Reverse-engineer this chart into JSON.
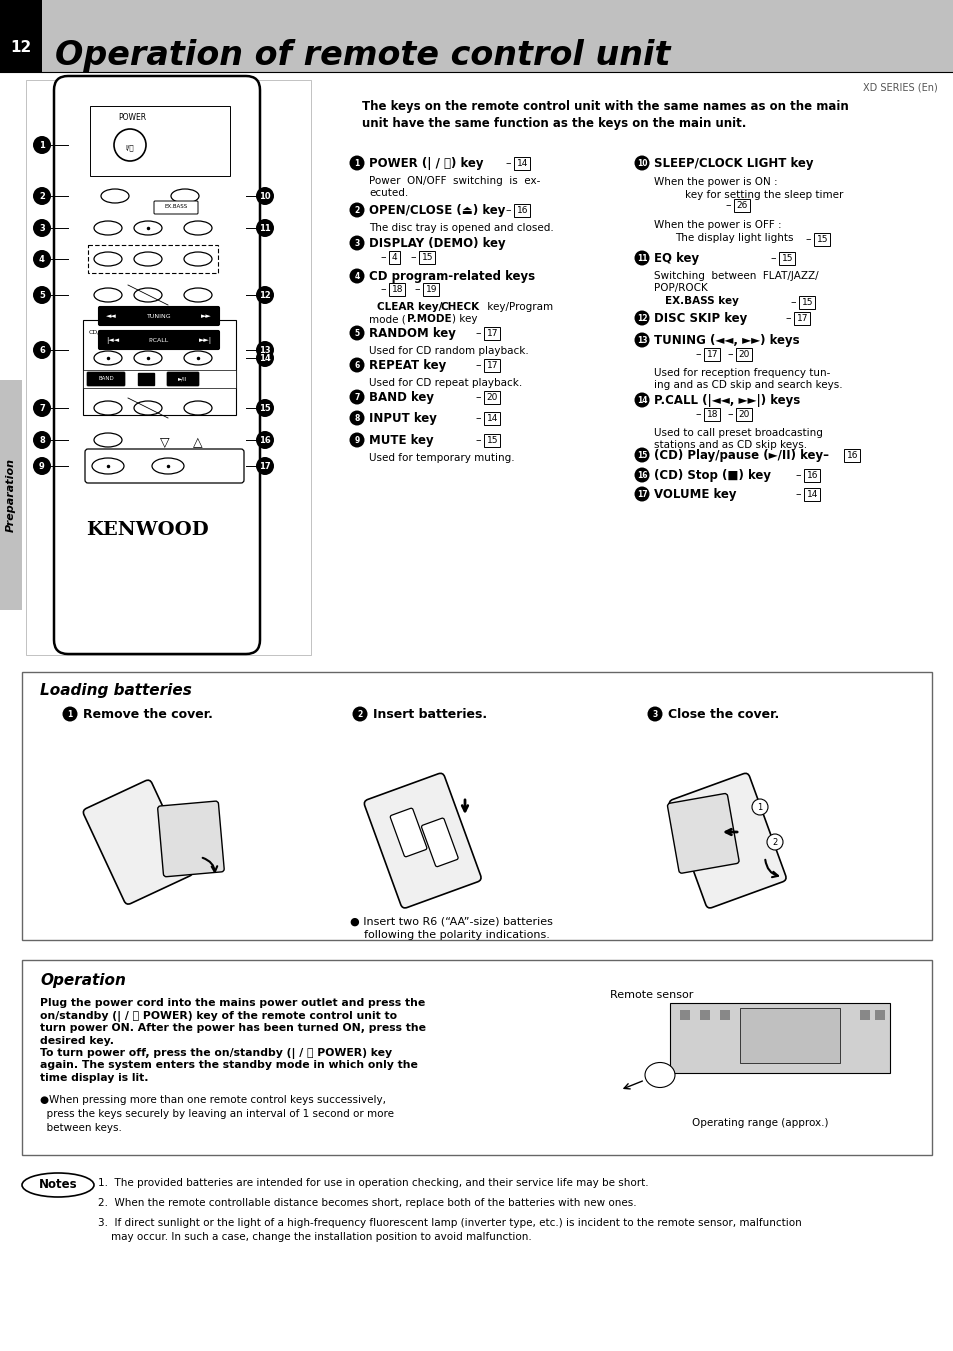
{
  "bg_color": "#c8c8c8",
  "page_bg": "#ffffff",
  "page_num": "12",
  "title": "Operation of remote control unit",
  "subtitle_brand": "XD SERIES (En)",
  "preparation_label": "Preparation",
  "section_keys_intro": "The keys on the remote control unit with the same names as on the main\nunit have the same function as the keys on the main unit.",
  "loading_title": "Loading batteries",
  "load_step1": "Remove the cover.",
  "load_step2": "Insert batteries.",
  "load_step3": "Close the cover.",
  "load_note1": "● Insert two R6 (“AA”-size) batteries",
  "load_note2": "    following the polarity indications.",
  "operation_title": "Operation",
  "op_bold1": "Plug the power cord into the mains power outlet and press the",
  "op_bold2": "on/standby (| / ⏽ POWER) key of the remote control unit to",
  "op_bold3": "turn power ON. After the power has been turned ON, press the",
  "op_bold4": "desired key.",
  "op_bold5": "To turn power off, press the on/standby (| / ⏽ POWER) key",
  "op_bold6": "again. The system enters the standby mode in which only the",
  "op_bold7": "time display is lit.",
  "op_note": "●When pressing more than one remote control keys successively,\n  press the keys securely by leaving an interval of 1 second or more\n  between keys.",
  "remote_sensor_label": "Remote sensor",
  "operating_range_label": "Operating range (approx.)",
  "notes_title": "Notes",
  "note1": "1.  The provided batteries are intended for use in operation checking, and their service life may be short.",
  "note2": "2.  When the remote controllable distance becomes short, replace both of the batteries with new ones.",
  "note3": "3.  If direct sunlight or the light of a high-frequency fluorescent lamp (inverter type, etc.) is incident to the remote sensor, malfunction",
  "note3b": "    may occur. In such a case, change the installation position to avoid malfunction."
}
